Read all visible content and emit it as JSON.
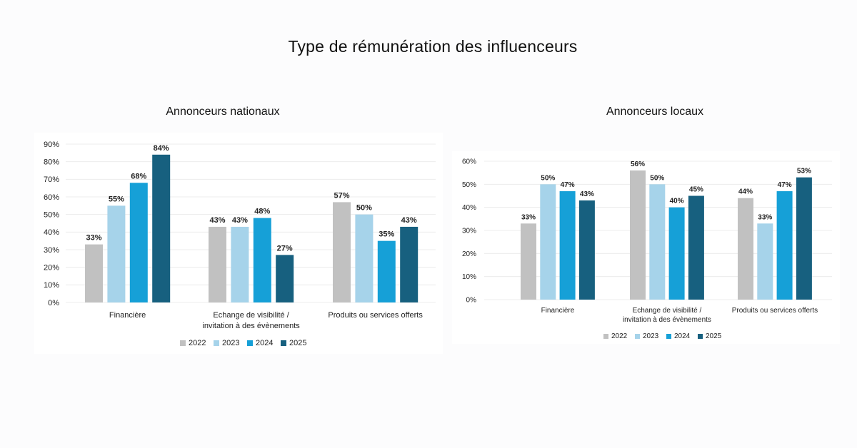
{
  "page_title": "Type de rémunération des influenceurs",
  "chart_data": [
    {
      "type": "bar",
      "title": "Annonceurs nationaux",
      "categories": [
        "Financière",
        "Echange de visibilité / invitation à des évènements",
        "Produits ou services offerts"
      ],
      "category_lines": [
        [
          "Financière"
        ],
        [
          "Echange de visibilité /",
          "invitation à des évènements"
        ],
        [
          "Produits ou services offerts"
        ]
      ],
      "series": [
        {
          "name": "2022",
          "color": "#c1c1c1",
          "values": [
            33,
            43,
            57
          ]
        },
        {
          "name": "2023",
          "color": "#a6d3ea",
          "values": [
            55,
            43,
            50
          ]
        },
        {
          "name": "2024",
          "color": "#16a0d7",
          "values": [
            68,
            48,
            35
          ]
        },
        {
          "name": "2025",
          "color": "#17607f",
          "values": [
            84,
            27,
            43
          ]
        }
      ],
      "ylim": [
        0,
        90
      ],
      "yticks": [
        0,
        10,
        20,
        30,
        40,
        50,
        60,
        70,
        80,
        90
      ],
      "value_suffix": "%",
      "grid": true,
      "legend": "bottom"
    },
    {
      "type": "bar",
      "title": "Annonceurs locaux",
      "categories": [
        "Financière",
        "Echange de visibilité / invitation à des évènements",
        "Produits ou services offerts"
      ],
      "category_lines": [
        [
          "Financière"
        ],
        [
          "Echange de visibilité /",
          "invitation à des évènements"
        ],
        [
          "Produits ou services offerts"
        ]
      ],
      "series": [
        {
          "name": "2022",
          "color": "#c1c1c1",
          "values": [
            33,
            56,
            44
          ]
        },
        {
          "name": "2023",
          "color": "#a6d3ea",
          "values": [
            50,
            50,
            33
          ]
        },
        {
          "name": "2024",
          "color": "#16a0d7",
          "values": [
            47,
            40,
            47
          ]
        },
        {
          "name": "2025",
          "color": "#17607f",
          "values": [
            43,
            45,
            53
          ]
        }
      ],
      "ylim": [
        0,
        60
      ],
      "yticks": [
        0,
        10,
        20,
        30,
        40,
        50,
        60
      ],
      "value_suffix": "%",
      "grid": true,
      "legend": "bottom"
    }
  ]
}
